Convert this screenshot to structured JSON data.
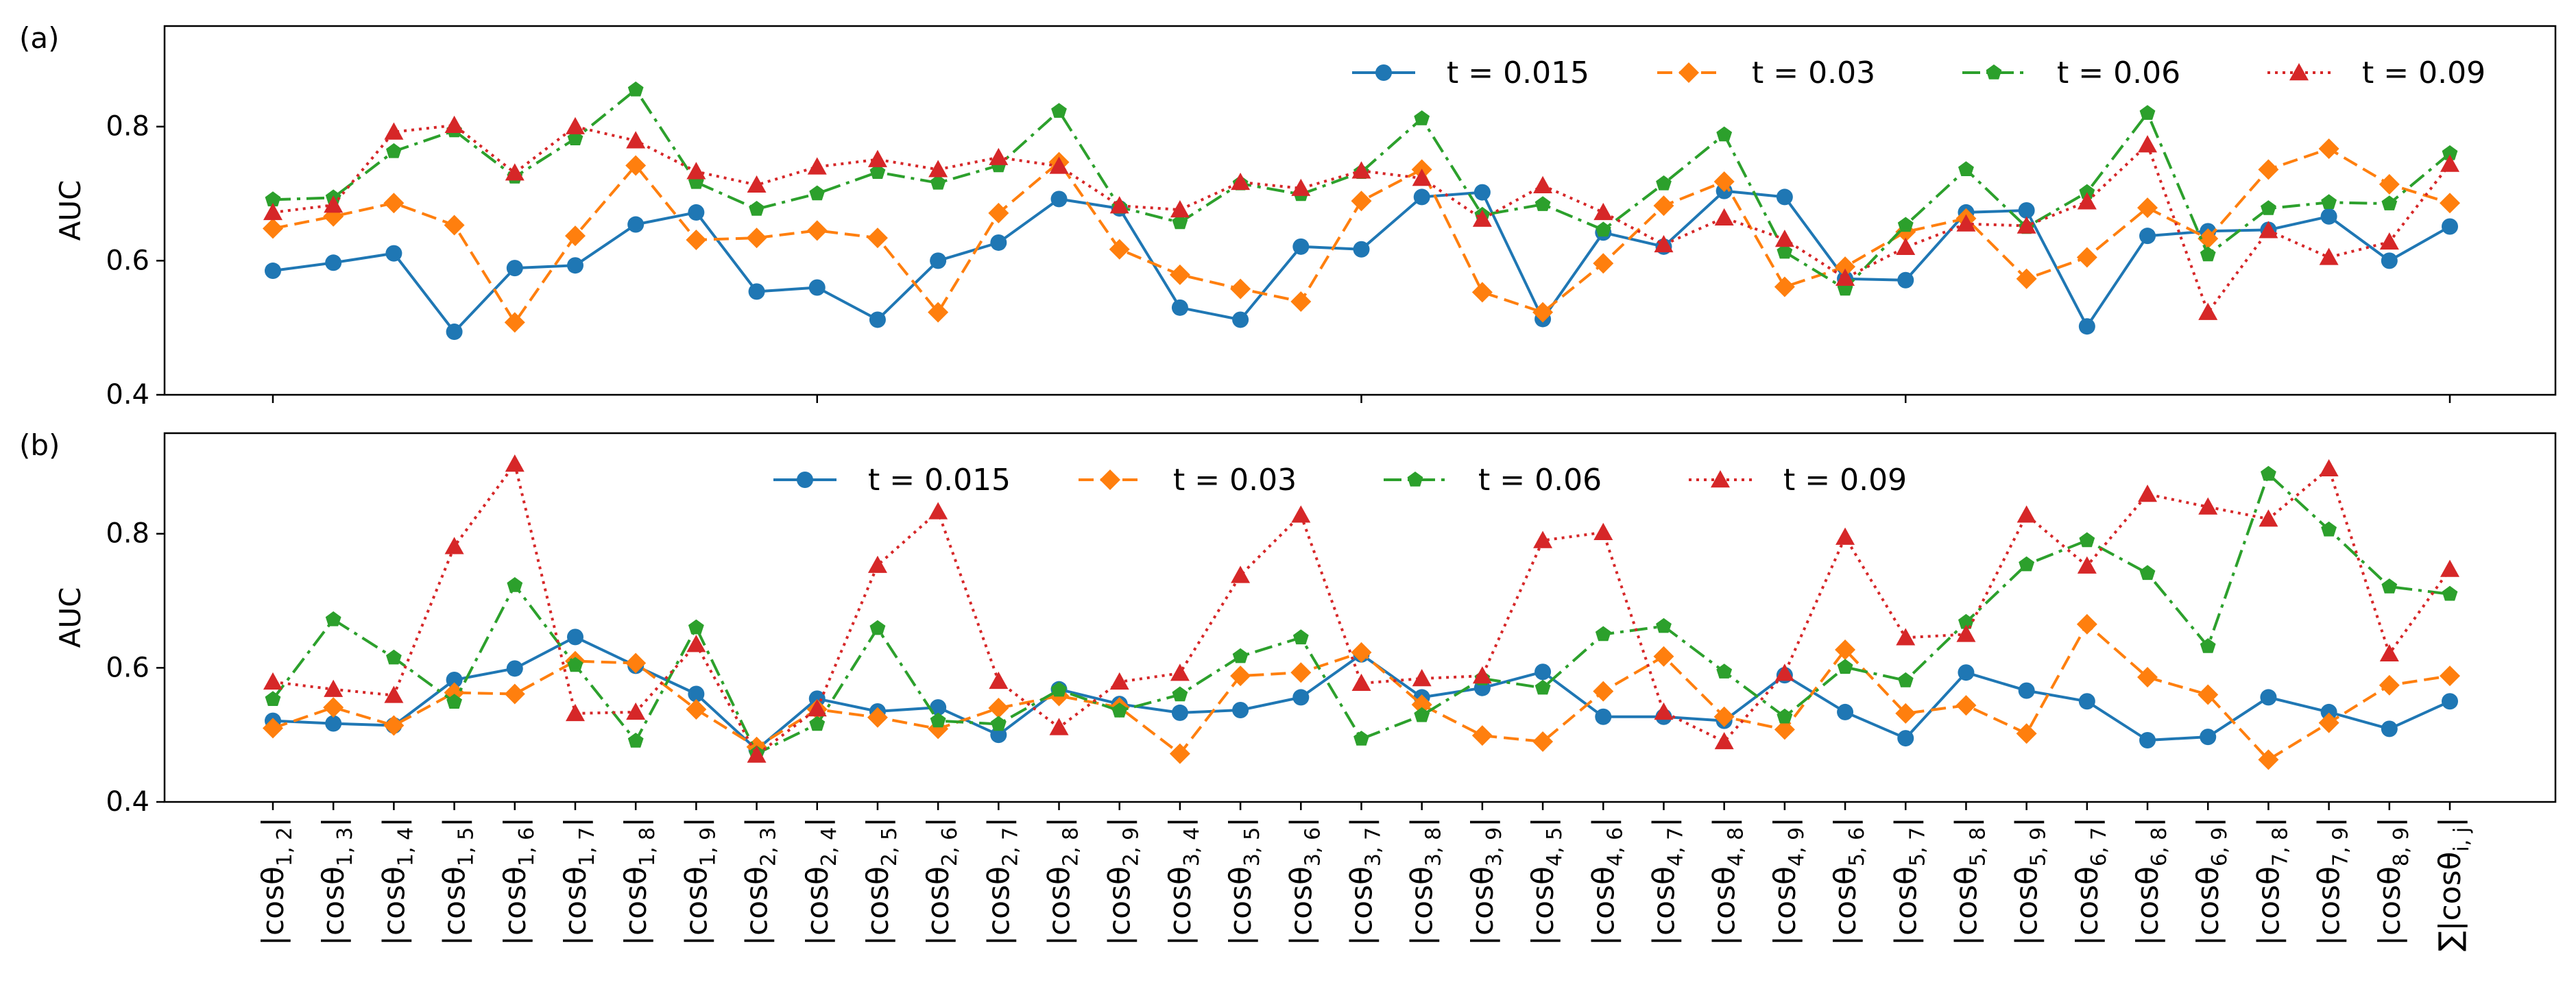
{
  "chart_data": {
    "type": "line",
    "panels": [
      {
        "panel_label": "(a)",
        "ylabel": "AUC",
        "ylim": [
          0.4,
          0.95
        ],
        "yticks": [
          "0.4",
          "0.6",
          "0.8"
        ],
        "legend_position": "top-right",
        "series": [
          {
            "name": "t = 0.015",
            "color": "#1f77b4",
            "marker": "circle",
            "linestyle": "solid",
            "values": [
              0.585,
              0.597,
              0.611,
              0.494,
              0.589,
              0.593,
              0.654,
              0.672,
              0.554,
              0.56,
              0.512,
              0.6,
              0.627,
              0.692,
              0.678,
              0.53,
              0.512,
              0.621,
              0.617,
              0.695,
              0.702,
              0.513,
              0.642,
              0.621,
              0.704,
              0.695,
              0.573,
              0.571,
              0.672,
              0.675,
              0.502,
              0.637,
              0.644,
              0.646,
              0.666,
              0.6,
              0.651
            ]
          },
          {
            "name": "t = 0.03",
            "color": "#ff7f0e",
            "marker": "diamond",
            "linestyle": "dashed",
            "values": [
              0.648,
              0.666,
              0.686,
              0.653,
              0.508,
              0.637,
              0.742,
              0.631,
              0.634,
              0.645,
              0.634,
              0.523,
              0.671,
              0.747,
              0.617,
              0.579,
              0.558,
              0.539,
              0.689,
              0.736,
              0.553,
              0.523,
              0.596,
              0.682,
              0.718,
              0.561,
              0.591,
              0.643,
              0.663,
              0.573,
              0.605,
              0.679,
              0.633,
              0.736,
              0.767,
              0.714,
              0.686
            ]
          },
          {
            "name": "t = 0.06",
            "color": "#2ca02c",
            "marker": "pentagon",
            "linestyle": "dashdot",
            "values": [
              0.691,
              0.694,
              0.763,
              0.794,
              0.725,
              0.782,
              0.855,
              0.717,
              0.677,
              0.7,
              0.732,
              0.716,
              0.742,
              0.823,
              0.68,
              0.657,
              0.715,
              0.699,
              0.732,
              0.812,
              0.668,
              0.684,
              0.646,
              0.715,
              0.788,
              0.613,
              0.558,
              0.653,
              0.736,
              0.65,
              0.702,
              0.82,
              0.609,
              0.678,
              0.687,
              0.685,
              0.76
            ]
          },
          {
            "name": "t = 0.09",
            "color": "#d62728",
            "marker": "triangle",
            "linestyle": "dotted",
            "values": [
              0.672,
              0.683,
              0.792,
              0.802,
              0.731,
              0.8,
              0.779,
              0.733,
              0.713,
              0.74,
              0.751,
              0.736,
              0.754,
              0.741,
              0.682,
              0.676,
              0.717,
              0.708,
              0.734,
              0.723,
              0.662,
              0.712,
              0.672,
              0.624,
              0.664,
              0.632,
              0.574,
              0.62,
              0.655,
              0.652,
              0.688,
              0.773,
              0.523,
              0.645,
              0.605,
              0.628,
              0.744
            ]
          }
        ]
      },
      {
        "panel_label": "(b)",
        "ylabel": "AUC",
        "ylim": [
          0.4,
          0.95
        ],
        "yticks": [
          "0.4",
          "0.6",
          "0.8"
        ],
        "legend_position": "top-center",
        "series": [
          {
            "name": "t = 0.015",
            "color": "#1f77b4",
            "marker": "circle",
            "linestyle": "solid",
            "values": [
              0.521,
              0.517,
              0.514,
              0.582,
              0.599,
              0.646,
              0.603,
              0.561,
              0.478,
              0.554,
              0.535,
              0.541,
              0.5,
              0.568,
              0.546,
              0.533,
              0.537,
              0.556,
              0.62,
              0.556,
              0.57,
              0.594,
              0.527,
              0.527,
              0.521,
              0.589,
              0.534,
              0.495,
              0.593,
              0.566,
              0.55,
              0.492,
              0.497,
              0.556,
              0.534,
              0.509,
              0.55
            ]
          },
          {
            "name": "t = 0.03",
            "color": "#ff7f0e",
            "marker": "diamond",
            "linestyle": "dashed",
            "values": [
              0.51,
              0.541,
              0.514,
              0.563,
              0.561,
              0.61,
              0.607,
              0.538,
              0.482,
              0.538,
              0.526,
              0.509,
              0.54,
              0.558,
              0.541,
              0.472,
              0.588,
              0.593,
              0.623,
              0.545,
              0.499,
              0.49,
              0.565,
              0.617,
              0.527,
              0.508,
              0.627,
              0.532,
              0.544,
              0.502,
              0.665,
              0.586,
              0.56,
              0.463,
              0.518,
              0.574,
              0.588
            ]
          },
          {
            "name": "t = 0.06",
            "color": "#2ca02c",
            "marker": "pentagon",
            "linestyle": "dashdot",
            "values": [
              0.553,
              0.672,
              0.615,
              0.549,
              0.723,
              0.604,
              0.491,
              0.66,
              0.472,
              0.516,
              0.659,
              0.521,
              0.516,
              0.567,
              0.536,
              0.56,
              0.617,
              0.645,
              0.494,
              0.529,
              0.584,
              0.57,
              0.65,
              0.662,
              0.594,
              0.527,
              0.601,
              0.581,
              0.668,
              0.754,
              0.79,
              0.741,
              0.632,
              0.889,
              0.806,
              0.721,
              0.71
            ]
          },
          {
            "name": "t = 0.09",
            "color": "#d62728",
            "marker": "triangle",
            "linestyle": "dotted",
            "values": [
              0.579,
              0.568,
              0.559,
              0.781,
              0.904,
              0.532,
              0.534,
              0.635,
              0.47,
              0.539,
              0.753,
              0.833,
              0.58,
              0.511,
              0.579,
              0.592,
              0.738,
              0.828,
              0.577,
              0.584,
              0.588,
              0.79,
              0.802,
              0.534,
              0.49,
              0.592,
              0.795,
              0.645,
              0.65,
              0.828,
              0.752,
              0.859,
              0.84,
              0.822,
              0.897,
              0.621,
              0.747
            ]
          }
        ]
      }
    ],
    "xtick_labels": [
      {
        "base": "|cosθ",
        "sub": "1, 2",
        "tail": "|"
      },
      {
        "base": "|cosθ",
        "sub": "1, 3",
        "tail": "|"
      },
      {
        "base": "|cosθ",
        "sub": "1, 4",
        "tail": "|"
      },
      {
        "base": "|cosθ",
        "sub": "1, 5",
        "tail": "|"
      },
      {
        "base": "|cosθ",
        "sub": "1, 6",
        "tail": "|"
      },
      {
        "base": "|cosθ",
        "sub": "1, 7",
        "tail": "|"
      },
      {
        "base": "|cosθ",
        "sub": "1, 8",
        "tail": "|"
      },
      {
        "base": "|cosθ",
        "sub": "1, 9",
        "tail": "|"
      },
      {
        "base": "|cosθ",
        "sub": "2, 3",
        "tail": "|"
      },
      {
        "base": "|cosθ",
        "sub": "2, 4",
        "tail": "|"
      },
      {
        "base": "|cosθ",
        "sub": "2, 5",
        "tail": "|"
      },
      {
        "base": "|cosθ",
        "sub": "2, 6",
        "tail": "|"
      },
      {
        "base": "|cosθ",
        "sub": "2, 7",
        "tail": "|"
      },
      {
        "base": "|cosθ",
        "sub": "2, 8",
        "tail": "|"
      },
      {
        "base": "|cosθ",
        "sub": "2, 9",
        "tail": "|"
      },
      {
        "base": "|cosθ",
        "sub": "3, 4",
        "tail": "|"
      },
      {
        "base": "|cosθ",
        "sub": "3, 5",
        "tail": "|"
      },
      {
        "base": "|cosθ",
        "sub": "3, 6",
        "tail": "|"
      },
      {
        "base": "|cosθ",
        "sub": "3, 7",
        "tail": "|"
      },
      {
        "base": "|cosθ",
        "sub": "3, 8",
        "tail": "|"
      },
      {
        "base": "|cosθ",
        "sub": "3, 9",
        "tail": "|"
      },
      {
        "base": "|cosθ",
        "sub": "4, 5",
        "tail": "|"
      },
      {
        "base": "|cosθ",
        "sub": "4, 6",
        "tail": "|"
      },
      {
        "base": "|cosθ",
        "sub": "4, 7",
        "tail": "|"
      },
      {
        "base": "|cosθ",
        "sub": "4, 8",
        "tail": "|"
      },
      {
        "base": "|cosθ",
        "sub": "4, 9",
        "tail": "|"
      },
      {
        "base": "|cosθ",
        "sub": "5, 6",
        "tail": "|"
      },
      {
        "base": "|cosθ",
        "sub": "5, 7",
        "tail": "|"
      },
      {
        "base": "|cosθ",
        "sub": "5, 8",
        "tail": "|"
      },
      {
        "base": "|cosθ",
        "sub": "5, 9",
        "tail": "|"
      },
      {
        "base": "|cosθ",
        "sub": "6, 7",
        "tail": "|"
      },
      {
        "base": "|cosθ",
        "sub": "6, 8",
        "tail": "|"
      },
      {
        "base": "|cosθ",
        "sub": "6, 9",
        "tail": "|"
      },
      {
        "base": "|cosθ",
        "sub": "7, 8",
        "tail": "|"
      },
      {
        "base": "|cosθ",
        "sub": "7, 9",
        "tail": "|"
      },
      {
        "base": "|cosθ",
        "sub": "8, 9",
        "tail": "|"
      },
      {
        "base": "∑|cosθ",
        "sub": "i, j",
        "tail": "|"
      }
    ],
    "grid": false
  }
}
